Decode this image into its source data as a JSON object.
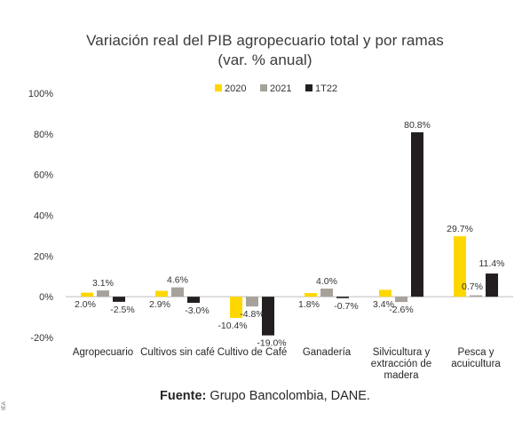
{
  "chart_data": {
    "type": "bar",
    "title": "Variación real del PIB agropecuario total y por ramas",
    "subtitle": "(var. % anual)",
    "categories": [
      [
        "Agropecuario"
      ],
      [
        "Cultivos sin café"
      ],
      [
        "Cultivo de Café"
      ],
      [
        "Ganadería"
      ],
      [
        "Silvicultura y",
        "extracción de",
        "madera"
      ],
      [
        "Pesca y",
        "acuicultura"
      ]
    ],
    "series": [
      {
        "name": "2020",
        "color": "#FFD700",
        "values": [
          2.0,
          2.9,
          -10.4,
          1.8,
          3.4,
          29.7
        ],
        "labels": [
          "2.0%",
          "2.9%",
          "-10.4%",
          "1.8%",
          "3.4%",
          "29.7%"
        ]
      },
      {
        "name": "2021",
        "color": "#A6A29B",
        "values": [
          3.1,
          4.6,
          -4.8,
          4.0,
          -2.6,
          0.7
        ],
        "labels": [
          "3.1%",
          "4.6%",
          "-4.8%",
          "4.0%",
          "-2.6%",
          "0.7%"
        ]
      },
      {
        "name": "1T22",
        "color": "#231F20",
        "values": [
          -2.5,
          -3.0,
          -19.0,
          -0.7,
          80.8,
          11.4
        ],
        "labels": [
          "-2.5%",
          "-3.0%",
          "-19.0%",
          "-0.7%",
          "80.8%",
          "11.4%"
        ]
      }
    ],
    "yticks": [
      "100%",
      "80%",
      "60%",
      "40%",
      "20%",
      "0%",
      "-20%"
    ],
    "ytick_values": [
      100,
      80,
      60,
      40,
      20,
      0,
      -20
    ],
    "ylim": [
      -20,
      100
    ],
    "grid": false,
    "legend_position": "top-right"
  },
  "source": {
    "label": "Fuente:",
    "text": " Grupo Bancolombia, DANE."
  },
  "side_mark": "IEA"
}
